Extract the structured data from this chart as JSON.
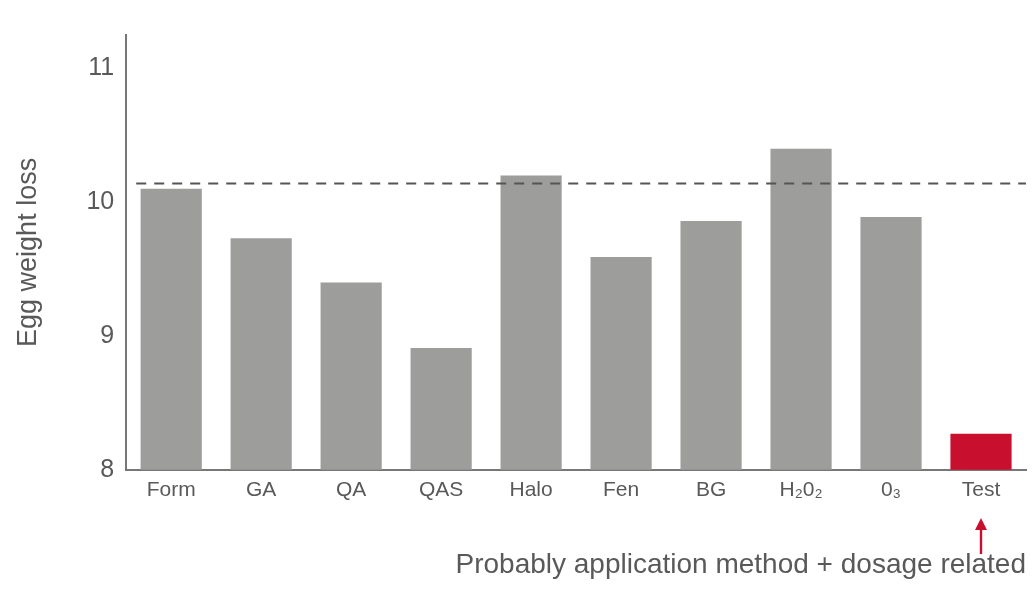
{
  "chart_data": {
    "type": "bar",
    "ylabel": "Egg weight loss",
    "categories": [
      "Form",
      "GA",
      "QA",
      "QAS",
      "Halo",
      "Fen",
      "BG",
      "H₂0₂",
      "0₃",
      "Test"
    ],
    "values": [
      10.1,
      9.73,
      9.4,
      8.91,
      10.2,
      9.59,
      9.86,
      10.4,
      9.89,
      8.27
    ],
    "colors": [
      "#9d9d9c",
      "#9d9d9c",
      "#9d9d9c",
      "#9d9d9c",
      "#9d9d9c",
      "#9d9d9c",
      "#9d9d9c",
      "#9d9d9c",
      "#9d9d9c",
      "#c8102e"
    ],
    "ylim": [
      8,
      11.25
    ],
    "yticks": [
      8,
      9,
      10,
      11
    ],
    "grid": false,
    "ref_lines": [
      {
        "axis": "y",
        "value": 10.14,
        "color": "#555555",
        "line_style": "dashed"
      }
    ],
    "annotations": [
      "Probably application method + dosage related"
    ]
  }
}
